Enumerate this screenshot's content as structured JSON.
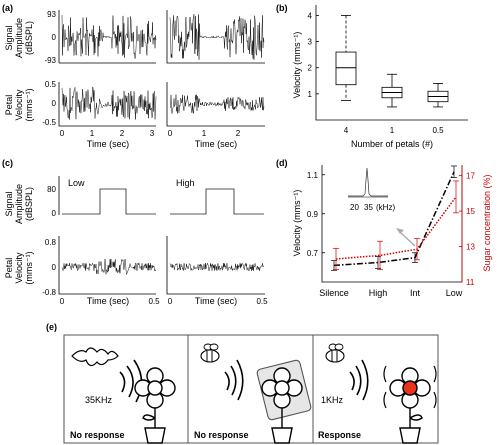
{
  "panels": {
    "a": {
      "label": "(a)",
      "top_ylabel": [
        "Signal",
        "Amplitude",
        "(dBSPL)"
      ],
      "bottom_ylabel": [
        "Petal",
        "Velocity",
        "(mms⁻¹)"
      ],
      "top_yticks": [
        "93",
        "0",
        "-93"
      ],
      "bottom_yticks": [
        "0.5",
        "0",
        "-0.5"
      ],
      "left_xticks": [
        "0",
        "1",
        "2",
        "3"
      ],
      "right_xticks": [
        "0",
        "1",
        "2"
      ],
      "xlabel": "Time (sec)"
    },
    "b": {
      "label": "(b)",
      "ylabel": "Velocity (mms⁻¹)",
      "xlabel": "Number of petals (#)"
    },
    "c": {
      "label": "(c)",
      "low_label": "Low",
      "high_label": "High",
      "top_ylabel": [
        "Signal",
        "Amplitude",
        "(dBSPL)"
      ],
      "bottom_ylabel": [
        "Petal",
        "Velocity",
        "(mms⁻¹)"
      ],
      "top_yticks": [
        "80",
        "0"
      ],
      "bottom_yticks": [
        "0.8",
        "0",
        "-0.8"
      ],
      "left_xticks": [
        "0",
        "0.5"
      ],
      "right_xticks": [
        "0",
        "0.5"
      ],
      "xlabel": "Time (sec)"
    },
    "d": {
      "label": "(d)",
      "ylabel_left": "Velocity (mms⁻¹)",
      "ylabel_right": "Sugar concentration (%)",
      "inset_ticks": [
        "20",
        "35",
        "(kHz)"
      ],
      "colors": {
        "velocity": "#000000",
        "sugar": "#cc0000",
        "arrow": "#aaaaaa"
      }
    },
    "e": {
      "label": "(e)",
      "scenes": [
        {
          "freq": "35KHz",
          "caption": "No response"
        },
        {
          "freq": "",
          "caption": "No response"
        },
        {
          "freq": "1KHz",
          "caption": "Response"
        }
      ],
      "flower_highlight": "#e8341c"
    }
  },
  "chart_data": [
    {
      "type": "box",
      "panel": "b",
      "categories": [
        "4",
        "1",
        "0.5"
      ],
      "boxes": [
        {
          "whisker_low": 0.75,
          "q1": 1.35,
          "median": 2.0,
          "q3": 2.6,
          "whisker_high": 4.0
        },
        {
          "whisker_low": 0.5,
          "q1": 0.85,
          "median": 1.05,
          "q3": 1.25,
          "whisker_high": 1.75
        },
        {
          "whisker_low": 0.5,
          "q1": 0.7,
          "median": 0.9,
          "q3": 1.1,
          "whisker_high": 1.4
        }
      ],
      "yticks": [
        "1",
        "2",
        "3",
        "4"
      ],
      "ylim": [
        0,
        4.4
      ],
      "xlabel": "Number of petals (#)",
      "ylabel": "Velocity (mms⁻¹)"
    },
    {
      "type": "line",
      "panel": "d",
      "categories": [
        "Silence",
        "High",
        "Int",
        "Low"
      ],
      "series": [
        {
          "name": "",
          "axis": "left",
          "style": "dash-dot",
          "color": "#000000",
          "values": [
            0.635,
            0.65,
            0.675,
            1.115
          ],
          "err": [
            0.025,
            0.03,
            0.025,
            0.03
          ]
        },
        {
          "name": "",
          "axis": "right",
          "style": "dotted",
          "color": "#cc0000",
          "values": [
            12.3,
            12.5,
            12.85,
            15.8
          ],
          "err": [
            0.6,
            0.8,
            0.6,
            0.9
          ]
        }
      ],
      "left_yticks": [
        "0.7",
        "0.9",
        "1.1"
      ],
      "left_ylim": [
        0.55,
        1.15
      ],
      "right_yticks": [
        "11",
        "13",
        "15",
        "17"
      ],
      "right_ylim": [
        11,
        17.6
      ],
      "ylabel": "Velocity (mms⁻¹)",
      "ylabel_right": "Sugar concentration (%)"
    }
  ]
}
